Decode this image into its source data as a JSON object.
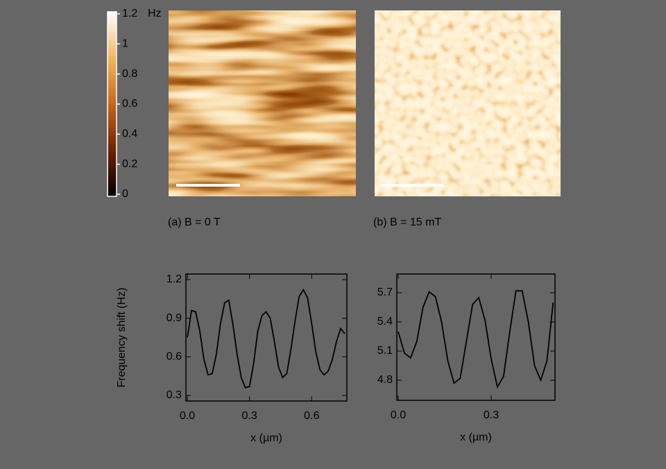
{
  "chart_data": [
    {
      "type": "colorbar",
      "label": "Hz",
      "ylim": [
        0,
        1.2
      ],
      "yticks": [
        0,
        0.2,
        0.4,
        0.6,
        0.8,
        1,
        1.2
      ],
      "colors": [
        "#000000",
        "#6e2200",
        "#c8661a",
        "#f0b860",
        "#ffffff"
      ]
    },
    {
      "type": "line",
      "x_label": "x (µm)",
      "y_label": "Frequency shift (Hz)",
      "xlim": [
        -0.007,
        0.77
      ],
      "ylim": [
        0.257,
        1.243
      ],
      "xticks": [
        {
          "value": 0,
          "label": "0.0"
        },
        0.3,
        0.6
      ],
      "yticks": [
        0.3,
        0.6,
        0.9,
        1.2
      ],
      "series": [
        {
          "color": "#000000",
          "x": [
            0,
            0.02,
            0.04,
            0.06,
            0.08,
            0.1,
            0.12,
            0.14,
            0.16,
            0.18,
            0.2,
            0.22,
            0.24,
            0.26,
            0.28,
            0.3,
            0.32,
            0.34,
            0.36,
            0.38,
            0.4,
            0.42,
            0.44,
            0.46,
            0.48,
            0.5,
            0.52,
            0.54,
            0.56,
            0.58,
            0.6,
            0.62,
            0.64,
            0.66,
            0.68,
            0.7,
            0.72,
            0.74,
            0.76
          ],
          "values": [
            0.75,
            0.96,
            0.95,
            0.8,
            0.58,
            0.46,
            0.47,
            0.62,
            0.86,
            1.02,
            1.04,
            0.85,
            0.62,
            0.44,
            0.36,
            0.37,
            0.55,
            0.8,
            0.92,
            0.95,
            0.9,
            0.72,
            0.52,
            0.44,
            0.47,
            0.66,
            0.88,
            1.07,
            1.12,
            1.06,
            0.86,
            0.64,
            0.5,
            0.46,
            0.49,
            0.58,
            0.72,
            0.82,
            0.78
          ]
        }
      ]
    },
    {
      "type": "line",
      "x_label": "x (µm)",
      "xlim": [
        -0.0045,
        0.506
      ],
      "ylim": [
        4.593,
        5.893
      ],
      "xticks": [
        {
          "value": 0,
          "label": "0.0"
        },
        0.3
      ],
      "yticks": [
        4.8,
        5.1,
        5.4,
        5.7
      ],
      "series": [
        {
          "color": "#000000",
          "x": [
            0,
            0.02,
            0.04,
            0.06,
            0.08,
            0.1,
            0.12,
            0.14,
            0.16,
            0.18,
            0.2,
            0.22,
            0.24,
            0.26,
            0.28,
            0.3,
            0.32,
            0.34,
            0.36,
            0.38,
            0.4,
            0.42,
            0.44,
            0.46,
            0.48,
            0.5
          ],
          "values": [
            5.3,
            5.08,
            5.03,
            5.2,
            5.55,
            5.71,
            5.66,
            5.4,
            5.0,
            4.77,
            4.82,
            5.2,
            5.58,
            5.65,
            5.42,
            5.02,
            4.73,
            4.84,
            5.3,
            5.72,
            5.72,
            5.4,
            4.95,
            4.8,
            5.0,
            5.6
          ]
        }
      ]
    }
  ],
  "panels": [
    {
      "caption": "(a) B = 0 T"
    },
    {
      "caption": "(b) B = 15 mT"
    }
  ]
}
